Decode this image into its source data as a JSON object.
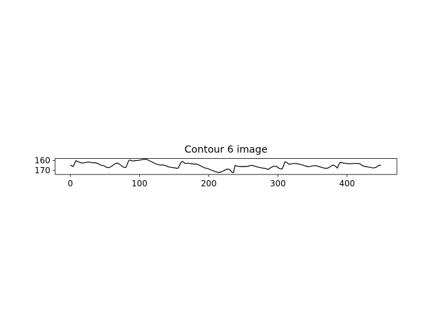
{
  "chart_data": {
    "type": "line",
    "title": "Contour 6 image",
    "xlabel": "",
    "ylabel": "",
    "xlim": [
      -22,
      472
    ],
    "ylim": [
      174,
      158
    ],
    "y_inverted": true,
    "grid": false,
    "xticks": [
      0,
      100,
      200,
      300,
      400
    ],
    "yticks": [
      160,
      170
    ],
    "series": [
      {
        "color": "#000000",
        "x": [
          0,
          4,
          8,
          12,
          16,
          20,
          24,
          28,
          32,
          36,
          40,
          44,
          48,
          52,
          56,
          60,
          64,
          68,
          72,
          76,
          80,
          82,
          84,
          86,
          90,
          94,
          98,
          102,
          106,
          110,
          114,
          118,
          122,
          126,
          130,
          134,
          138,
          142,
          146,
          150,
          154,
          156,
          158,
          160,
          162,
          166,
          170,
          174,
          178,
          182,
          186,
          190,
          194,
          198,
          202,
          206,
          210,
          214,
          218,
          222,
          226,
          230,
          234,
          236,
          238,
          242,
          246,
          250,
          254,
          258,
          262,
          266,
          270,
          274,
          278,
          282,
          286,
          290,
          294,
          298,
          302,
          306,
          308,
          310,
          312,
          316,
          320,
          324,
          328,
          332,
          336,
          340,
          344,
          348,
          352,
          356,
          360,
          364,
          368,
          372,
          376,
          380,
          384,
          386,
          388,
          390,
          394,
          398,
          402,
          406,
          410,
          414,
          418,
          422,
          426,
          430,
          434,
          438,
          442,
          446,
          449
        ],
        "y": [
          164.6,
          166.2,
          160.2,
          161.6,
          162.5,
          162.4,
          161.8,
          161.7,
          162.4,
          162.2,
          163.2,
          164.7,
          165.2,
          166.7,
          167.2,
          165.7,
          163.5,
          162.5,
          164.2,
          166.5,
          167.2,
          164.5,
          160.6,
          159.6,
          160.6,
          160.2,
          160.0,
          159.5,
          158.9,
          158.9,
          160.2,
          161.5,
          163.0,
          164.0,
          164.6,
          164.5,
          165.2,
          166.5,
          166.9,
          167.3,
          167.8,
          167.6,
          164.6,
          161.8,
          161.0,
          163.0,
          162.8,
          163.1,
          163.6,
          163.6,
          164.6,
          166.0,
          167.4,
          168.0,
          169.1,
          170.2,
          171.3,
          172.0,
          171.5,
          170.2,
          168.7,
          168.8,
          172.0,
          172.0,
          165.0,
          165.8,
          166.2,
          166.1,
          166.2,
          165.6,
          164.8,
          165.6,
          166.5,
          167.0,
          167.7,
          168.0,
          169.0,
          167.0,
          165.8,
          166.0,
          168.0,
          168.7,
          165.4,
          161.5,
          161.8,
          163.8,
          163.4,
          163.0,
          163.3,
          164.0,
          164.6,
          165.6,
          166.3,
          165.8,
          165.2,
          165.4,
          166.3,
          167.0,
          167.9,
          167.7,
          166.0,
          164.5,
          166.2,
          167.7,
          164.1,
          162.0,
          162.5,
          163.0,
          163.3,
          163.2,
          163.0,
          162.9,
          163.3,
          165.1,
          166.1,
          166.5,
          167.0,
          167.5,
          166.8,
          165.0,
          164.7
        ]
      }
    ]
  }
}
